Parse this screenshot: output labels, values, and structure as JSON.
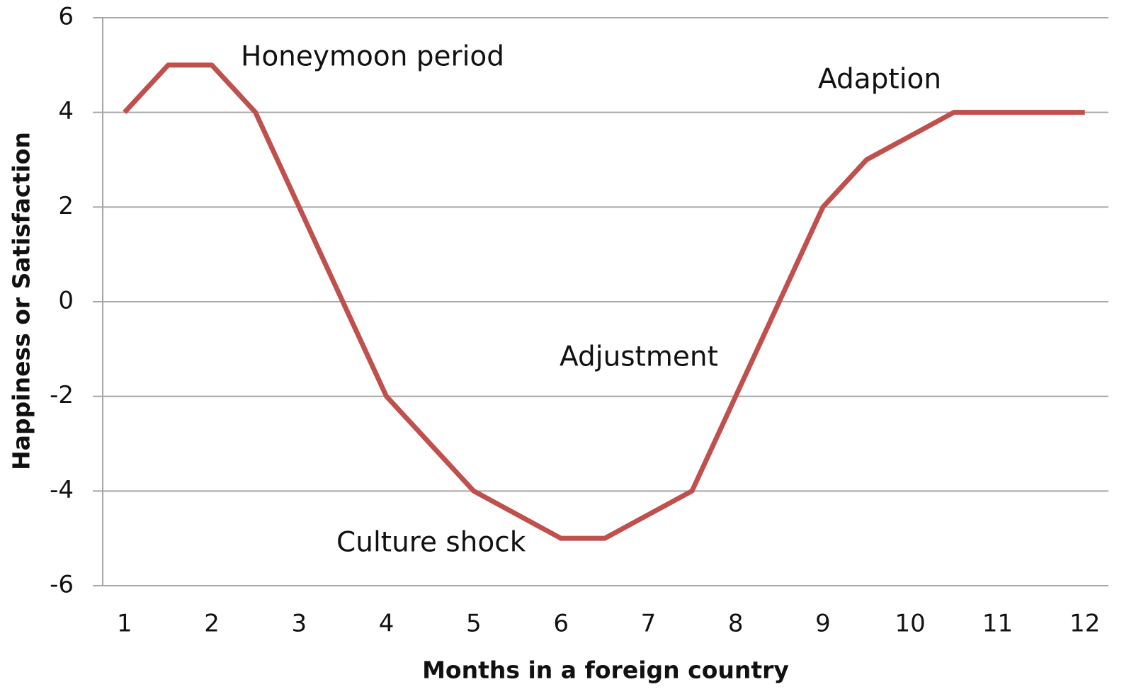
{
  "chart_data": {
    "type": "line",
    "xlabel": "Months in a foreign country",
    "ylabel": "Happiness or Satisfaction",
    "x": [
      1,
      1.5,
      2,
      2.5,
      4,
      5,
      6,
      6.5,
      7.5,
      9,
      9.5,
      10.5,
      12
    ],
    "series": [
      {
        "color": "#c0504d",
        "values": [
          4,
          5,
          5,
          4,
          -2,
          -4,
          -5,
          -5,
          -4,
          2,
          3,
          4,
          4
        ]
      }
    ],
    "xlim": [
      0.75,
      12.27
    ],
    "xticks": [
      1,
      2,
      3,
      4,
      5,
      6,
      7,
      8,
      9,
      10,
      11,
      12
    ],
    "ylim": [
      -6,
      6
    ],
    "yticks": [
      -6,
      -4,
      -2,
      0,
      2,
      4,
      6
    ],
    "grid": true,
    "annotations": [
      "Honeymoon period",
      "Adaption",
      "Adjustment",
      "Culture shock"
    ]
  }
}
